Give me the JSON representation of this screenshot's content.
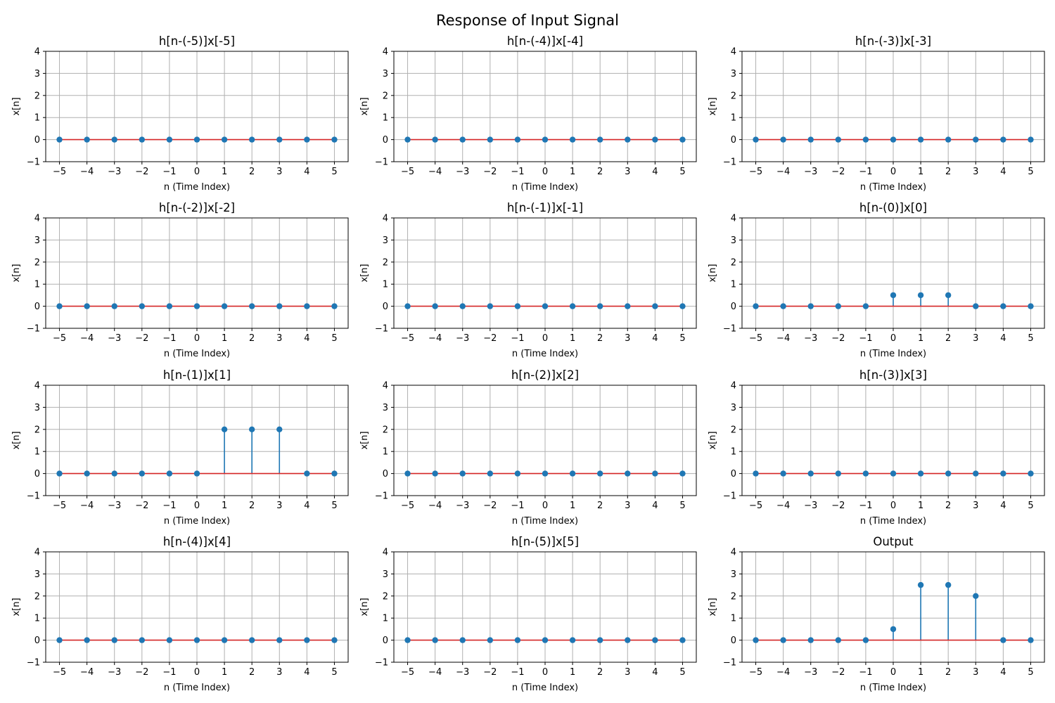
{
  "figure": {
    "suptitle": "Response of Input Signal"
  },
  "colors": {
    "stem": "#1f77b4",
    "baseline": "#d62728",
    "grid": "#b0b0b0"
  },
  "chart_data": [
    {
      "type": "stem",
      "title": "h[n-(-5)]x[-5]",
      "xlabel": "n (Time Index)",
      "ylabel": "x[n]",
      "x": [
        -5,
        -4,
        -3,
        -2,
        -1,
        0,
        1,
        2,
        3,
        4,
        5
      ],
      "y": [
        0,
        0,
        0,
        0,
        0,
        0,
        0,
        0,
        0,
        0,
        0
      ],
      "xticks": [
        -5,
        -4,
        -3,
        -2,
        -1,
        0,
        1,
        2,
        3,
        4,
        5
      ],
      "yticks": [
        -1,
        0,
        1,
        2,
        3,
        4
      ],
      "ylim": [
        -1,
        4
      ],
      "xlim": [
        -5.5,
        5.5
      ],
      "grid": true
    },
    {
      "type": "stem",
      "title": "h[n-(-4)]x[-4]",
      "xlabel": "n (Time Index)",
      "ylabel": "x[n]",
      "x": [
        -5,
        -4,
        -3,
        -2,
        -1,
        0,
        1,
        2,
        3,
        4,
        5
      ],
      "y": [
        0,
        0,
        0,
        0,
        0,
        0,
        0,
        0,
        0,
        0,
        0
      ],
      "xticks": [
        -5,
        -4,
        -3,
        -2,
        -1,
        0,
        1,
        2,
        3,
        4,
        5
      ],
      "yticks": [
        -1,
        0,
        1,
        2,
        3,
        4
      ],
      "ylim": [
        -1,
        4
      ],
      "xlim": [
        -5.5,
        5.5
      ],
      "grid": true
    },
    {
      "type": "stem",
      "title": "h[n-(-3)]x[-3]",
      "xlabel": "n (Time Index)",
      "ylabel": "x[n]",
      "x": [
        -5,
        -4,
        -3,
        -2,
        -1,
        0,
        1,
        2,
        3,
        4,
        5
      ],
      "y": [
        0,
        0,
        0,
        0,
        0,
        0,
        0,
        0,
        0,
        0,
        0
      ],
      "xticks": [
        -5,
        -4,
        -3,
        -2,
        -1,
        0,
        1,
        2,
        3,
        4,
        5
      ],
      "yticks": [
        -1,
        0,
        1,
        2,
        3,
        4
      ],
      "ylim": [
        -1,
        4
      ],
      "xlim": [
        -5.5,
        5.5
      ],
      "grid": true
    },
    {
      "type": "stem",
      "title": "h[n-(-2)]x[-2]",
      "xlabel": "n (Time Index)",
      "ylabel": "x[n]",
      "x": [
        -5,
        -4,
        -3,
        -2,
        -1,
        0,
        1,
        2,
        3,
        4,
        5
      ],
      "y": [
        0,
        0,
        0,
        0,
        0,
        0,
        0,
        0,
        0,
        0,
        0
      ],
      "xticks": [
        -5,
        -4,
        -3,
        -2,
        -1,
        0,
        1,
        2,
        3,
        4,
        5
      ],
      "yticks": [
        -1,
        0,
        1,
        2,
        3,
        4
      ],
      "ylim": [
        -1,
        4
      ],
      "xlim": [
        -5.5,
        5.5
      ],
      "grid": true
    },
    {
      "type": "stem",
      "title": "h[n-(-1)]x[-1]",
      "xlabel": "n (Time Index)",
      "ylabel": "x[n]",
      "x": [
        -5,
        -4,
        -3,
        -2,
        -1,
        0,
        1,
        2,
        3,
        4,
        5
      ],
      "y": [
        0,
        0,
        0,
        0,
        0,
        0,
        0,
        0,
        0,
        0,
        0
      ],
      "xticks": [
        -5,
        -4,
        -3,
        -2,
        -1,
        0,
        1,
        2,
        3,
        4,
        5
      ],
      "yticks": [
        -1,
        0,
        1,
        2,
        3,
        4
      ],
      "ylim": [
        -1,
        4
      ],
      "xlim": [
        -5.5,
        5.5
      ],
      "grid": true
    },
    {
      "type": "stem",
      "title": "h[n-(0)]x[0]",
      "xlabel": "n (Time Index)",
      "ylabel": "x[n]",
      "x": [
        -5,
        -4,
        -3,
        -2,
        -1,
        0,
        1,
        2,
        3,
        4,
        5
      ],
      "y": [
        0,
        0,
        0,
        0,
        0,
        0.5,
        0.5,
        0.5,
        0,
        0,
        0
      ],
      "xticks": [
        -5,
        -4,
        -3,
        -2,
        -1,
        0,
        1,
        2,
        3,
        4,
        5
      ],
      "yticks": [
        -1,
        0,
        1,
        2,
        3,
        4
      ],
      "ylim": [
        -1,
        4
      ],
      "xlim": [
        -5.5,
        5.5
      ],
      "grid": true
    },
    {
      "type": "stem",
      "title": "h[n-(1)]x[1]",
      "xlabel": "n (Time Index)",
      "ylabel": "x[n]",
      "x": [
        -5,
        -4,
        -3,
        -2,
        -1,
        0,
        1,
        2,
        3,
        4,
        5
      ],
      "y": [
        0,
        0,
        0,
        0,
        0,
        0,
        2,
        2,
        2,
        0,
        0
      ],
      "xticks": [
        -5,
        -4,
        -3,
        -2,
        -1,
        0,
        1,
        2,
        3,
        4,
        5
      ],
      "yticks": [
        -1,
        0,
        1,
        2,
        3,
        4
      ],
      "ylim": [
        -1,
        4
      ],
      "xlim": [
        -5.5,
        5.5
      ],
      "grid": true
    },
    {
      "type": "stem",
      "title": "h[n-(2)]x[2]",
      "xlabel": "n (Time Index)",
      "ylabel": "x[n]",
      "x": [
        -5,
        -4,
        -3,
        -2,
        -1,
        0,
        1,
        2,
        3,
        4,
        5
      ],
      "y": [
        0,
        0,
        0,
        0,
        0,
        0,
        0,
        0,
        0,
        0,
        0
      ],
      "xticks": [
        -5,
        -4,
        -3,
        -2,
        -1,
        0,
        1,
        2,
        3,
        4,
        5
      ],
      "yticks": [
        -1,
        0,
        1,
        2,
        3,
        4
      ],
      "ylim": [
        -1,
        4
      ],
      "xlim": [
        -5.5,
        5.5
      ],
      "grid": true
    },
    {
      "type": "stem",
      "title": "h[n-(3)]x[3]",
      "xlabel": "n (Time Index)",
      "ylabel": "x[n]",
      "x": [
        -5,
        -4,
        -3,
        -2,
        -1,
        0,
        1,
        2,
        3,
        4,
        5
      ],
      "y": [
        0,
        0,
        0,
        0,
        0,
        0,
        0,
        0,
        0,
        0,
        0
      ],
      "xticks": [
        -5,
        -4,
        -3,
        -2,
        -1,
        0,
        1,
        2,
        3,
        4,
        5
      ],
      "yticks": [
        -1,
        0,
        1,
        2,
        3,
        4
      ],
      "ylim": [
        -1,
        4
      ],
      "xlim": [
        -5.5,
        5.5
      ],
      "grid": true
    },
    {
      "type": "stem",
      "title": "h[n-(4)]x[4]",
      "xlabel": "n (Time Index)",
      "ylabel": "x[n]",
      "x": [
        -5,
        -4,
        -3,
        -2,
        -1,
        0,
        1,
        2,
        3,
        4,
        5
      ],
      "y": [
        0,
        0,
        0,
        0,
        0,
        0,
        0,
        0,
        0,
        0,
        0
      ],
      "xticks": [
        -5,
        -4,
        -3,
        -2,
        -1,
        0,
        1,
        2,
        3,
        4,
        5
      ],
      "yticks": [
        -1,
        0,
        1,
        2,
        3,
        4
      ],
      "ylim": [
        -1,
        4
      ],
      "xlim": [
        -5.5,
        5.5
      ],
      "grid": true
    },
    {
      "type": "stem",
      "title": "h[n-(5)]x[5]",
      "xlabel": "n (Time Index)",
      "ylabel": "x[n]",
      "x": [
        -5,
        -4,
        -3,
        -2,
        -1,
        0,
        1,
        2,
        3,
        4,
        5
      ],
      "y": [
        0,
        0,
        0,
        0,
        0,
        0,
        0,
        0,
        0,
        0,
        0
      ],
      "xticks": [
        -5,
        -4,
        -3,
        -2,
        -1,
        0,
        1,
        2,
        3,
        4,
        5
      ],
      "yticks": [
        -1,
        0,
        1,
        2,
        3,
        4
      ],
      "ylim": [
        -1,
        4
      ],
      "xlim": [
        -5.5,
        5.5
      ],
      "grid": true
    },
    {
      "type": "stem",
      "title": "Output",
      "xlabel": "n (Time Index)",
      "ylabel": "x[n]",
      "x": [
        -5,
        -4,
        -3,
        -2,
        -1,
        0,
        1,
        2,
        3,
        4,
        5
      ],
      "y": [
        0,
        0,
        0,
        0,
        0,
        0.5,
        2.5,
        2.5,
        2,
        0,
        0
      ],
      "xticks": [
        -5,
        -4,
        -3,
        -2,
        -1,
        0,
        1,
        2,
        3,
        4,
        5
      ],
      "yticks": [
        -1,
        0,
        1,
        2,
        3,
        4
      ],
      "ylim": [
        -1,
        4
      ],
      "xlim": [
        -5.5,
        5.5
      ],
      "grid": true
    }
  ]
}
